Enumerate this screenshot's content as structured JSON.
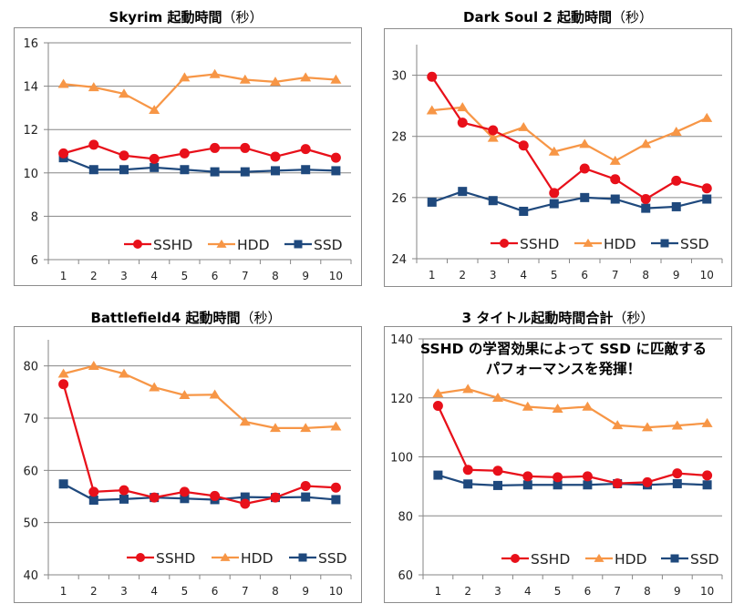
{
  "chart_data": [
    {
      "id": "skyrim",
      "type": "line",
      "title": "Skyrim 起動時間",
      "title_unit": "（秒）",
      "xlabel": "",
      "ylabel": "",
      "categories": [
        "1",
        "2",
        "3",
        "4",
        "5",
        "6",
        "7",
        "8",
        "9",
        "10"
      ],
      "ylim": [
        6,
        16
      ],
      "yticks": [
        6,
        8,
        10,
        12,
        14,
        16
      ],
      "grid": true,
      "legend": "bottom-right-inside",
      "series": [
        {
          "name": "SSHD",
          "color": "#E8101A",
          "marker": "circle",
          "values": [
            10.9,
            11.3,
            10.8,
            10.65,
            10.9,
            11.15,
            11.15,
            10.75,
            11.1,
            10.7
          ]
        },
        {
          "name": "HDD",
          "color": "#F79646",
          "marker": "triangle",
          "values": [
            14.1,
            13.95,
            13.65,
            12.9,
            14.4,
            14.55,
            14.3,
            14.2,
            14.4,
            14.3
          ]
        },
        {
          "name": "SSD",
          "color": "#1F497D",
          "marker": "square",
          "values": [
            10.7,
            10.15,
            10.15,
            10.25,
            10.15,
            10.05,
            10.05,
            10.1,
            10.15,
            10.1
          ]
        }
      ]
    },
    {
      "id": "darksoul2",
      "type": "line",
      "title": "Dark Soul 2 起動時間",
      "title_unit": "（秒）",
      "xlabel": "",
      "ylabel": "",
      "categories": [
        "1",
        "2",
        "3",
        "4",
        "5",
        "6",
        "7",
        "8",
        "9",
        "10"
      ],
      "ylim": [
        24,
        31
      ],
      "yticks": [
        24,
        26,
        28,
        30
      ],
      "grid": true,
      "legend": "bottom-right-inside",
      "series": [
        {
          "name": "SSHD",
          "color": "#E8101A",
          "marker": "circle",
          "values": [
            29.95,
            28.45,
            28.2,
            27.7,
            26.15,
            26.95,
            26.6,
            25.95,
            26.55,
            26.3
          ]
        },
        {
          "name": "HDD",
          "color": "#F79646",
          "marker": "triangle",
          "values": [
            28.85,
            28.95,
            27.95,
            28.3,
            27.5,
            27.75,
            27.2,
            27.75,
            28.15,
            28.6
          ]
        },
        {
          "name": "SSD",
          "color": "#1F497D",
          "marker": "square",
          "values": [
            25.85,
            26.2,
            25.9,
            25.55,
            25.8,
            26.0,
            25.95,
            25.65,
            25.7,
            25.95
          ]
        }
      ]
    },
    {
      "id": "battlefield4",
      "type": "line",
      "title": "Battlefield4 起動時間",
      "title_unit": "（秒）",
      "xlabel": "",
      "ylabel": "",
      "categories": [
        "1",
        "2",
        "3",
        "4",
        "5",
        "6",
        "7",
        "8",
        "9",
        "10"
      ],
      "ylim": [
        40,
        85
      ],
      "yticks": [
        40,
        50,
        60,
        70,
        80
      ],
      "grid": true,
      "legend": "bottom-right-inside",
      "series": [
        {
          "name": "SSHD",
          "color": "#E8101A",
          "marker": "circle",
          "values": [
            76.5,
            55.9,
            56.2,
            54.8,
            55.9,
            55.1,
            53.6,
            54.8,
            57.0,
            56.7
          ]
        },
        {
          "name": "HDD",
          "color": "#F79646",
          "marker": "triangle",
          "values": [
            78.5,
            80.0,
            78.5,
            75.9,
            74.4,
            74.5,
            69.3,
            68.1,
            68.1,
            68.4
          ]
        },
        {
          "name": "SSD",
          "color": "#1F497D",
          "marker": "square",
          "values": [
            57.4,
            54.3,
            54.5,
            54.8,
            54.6,
            54.4,
            54.9,
            54.8,
            54.9,
            54.4
          ]
        }
      ]
    },
    {
      "id": "total",
      "type": "line",
      "title": "3 タイトル起動時間合計",
      "title_unit": "（秒）",
      "xlabel": "",
      "ylabel": "",
      "categories": [
        "1",
        "2",
        "3",
        "4",
        "5",
        "6",
        "7",
        "8",
        "9",
        "10"
      ],
      "ylim": [
        60,
        140
      ],
      "yticks": [
        60,
        80,
        100,
        120,
        140
      ],
      "grid": true,
      "legend": "bottom-right-inside",
      "annotation": [
        "SSHD の学習効果によって SSD に匹敵する",
        "パフォーマンスを発揮！"
      ],
      "series": [
        {
          "name": "SSHD",
          "color": "#E8101A",
          "marker": "circle",
          "values": [
            117.3,
            95.6,
            95.3,
            93.4,
            93.1,
            93.4,
            91.0,
            91.4,
            94.4,
            93.7
          ]
        },
        {
          "name": "HDD",
          "color": "#F79646",
          "marker": "triangle",
          "values": [
            121.5,
            123.0,
            120.0,
            117.0,
            116.3,
            117.0,
            110.7,
            110.0,
            110.6,
            111.4
          ]
        },
        {
          "name": "SSD",
          "color": "#1F497D",
          "marker": "square",
          "values": [
            93.8,
            90.8,
            90.3,
            90.5,
            90.5,
            90.5,
            90.9,
            90.5,
            90.9,
            90.5
          ]
        }
      ]
    }
  ]
}
